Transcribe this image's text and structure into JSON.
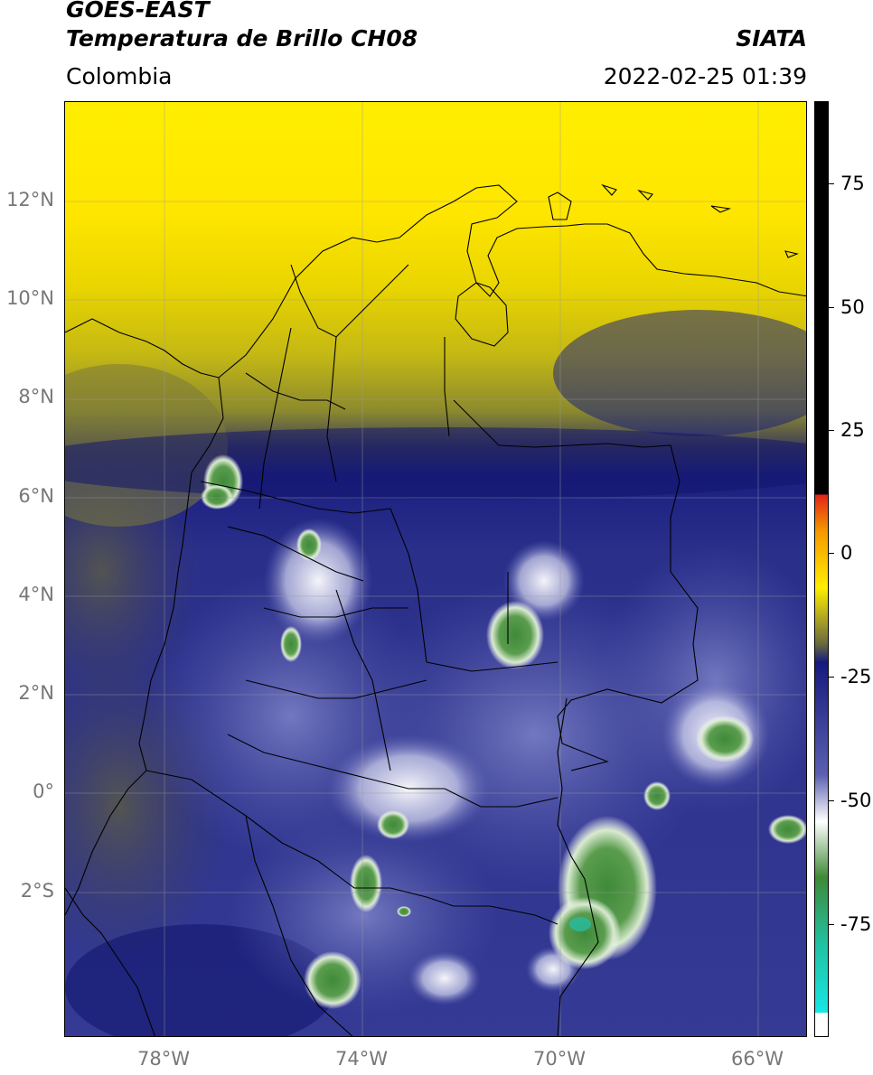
{
  "header": {
    "satellite": "GOES-EAST",
    "product": "Temperatura de Brillo CH08",
    "region": "Colombia",
    "organization": "SIATA",
    "timestamp": "2022-02-25 01:39"
  },
  "map": {
    "lat_range": [
      -5,
      14
    ],
    "lon_range": [
      -80,
      -65
    ],
    "lat_ticks": [
      "12°N",
      "10°N",
      "8°N",
      "6°N",
      "4°N",
      "2°N",
      "0°",
      "2°S"
    ],
    "lon_ticks": [
      "78°W",
      "74°W",
      "70°W",
      "66°W"
    ]
  },
  "colorbar": {
    "labels": [
      "75",
      "50",
      "25",
      "0",
      "-25",
      "-50",
      "-75"
    ],
    "range": [
      -95,
      95
    ],
    "colors": {
      "hot": "#000000",
      "red": "#e2231a",
      "orange": "#f59a00",
      "yellow": "#ffee00",
      "olive": "#6a6a3e",
      "navy": "#161a7e",
      "blue": "#5b60b0",
      "white": "#ffffff",
      "green": "#3e8a36",
      "teal": "#22c0a0",
      "cyan": "#17e6e6"
    }
  }
}
